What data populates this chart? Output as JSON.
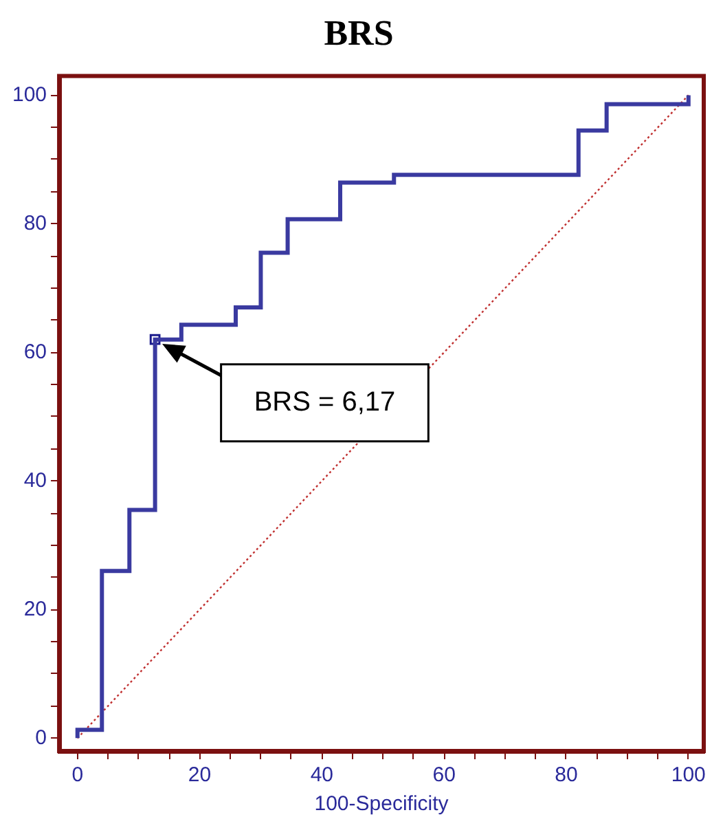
{
  "chart_data": {
    "type": "step",
    "title": "BRS",
    "xlabel": "100-Specificity",
    "xlim": [
      -3,
      102.5
    ],
    "ylim": [
      -2,
      103
    ],
    "xticks": [
      0,
      {
        "value": 5,
        "label": null
      },
      {
        "value": 10,
        "label": null
      },
      {
        "value": 15,
        "label": null
      },
      20,
      {
        "value": 25,
        "label": null
      },
      {
        "value": 30,
        "label": null
      },
      {
        "value": 35,
        "label": null
      },
      40,
      {
        "value": 45,
        "label": null
      },
      {
        "value": 50,
        "label": null
      },
      {
        "value": 55,
        "label": null
      },
      60,
      {
        "value": 65,
        "label": null
      },
      {
        "value": 70,
        "label": null
      },
      {
        "value": 75,
        "label": null
      },
      80,
      {
        "value": 85,
        "label": null
      },
      {
        "value": 90,
        "label": null
      },
      {
        "value": 95,
        "label": null
      },
      100
    ],
    "yticks": [
      0,
      {
        "value": 5,
        "label": null
      },
      {
        "value": 10,
        "label": null
      },
      {
        "value": 15,
        "label": null
      },
      20,
      {
        "value": 25,
        "label": null
      },
      {
        "value": 30,
        "label": null
      },
      {
        "value": 35,
        "label": null
      },
      40,
      {
        "value": 45,
        "label": null
      },
      {
        "value": 50,
        "label": null
      },
      {
        "value": 55,
        "label": null
      },
      60,
      {
        "value": 65,
        "label": null
      },
      {
        "value": 70,
        "label": null
      },
      {
        "value": 75,
        "label": null
      },
      80,
      {
        "value": 85,
        "label": null
      },
      {
        "value": 90,
        "label": null
      },
      {
        "value": 95,
        "label": null
      },
      100
    ],
    "series": [
      {
        "type": "step",
        "color": "#3a3aa0",
        "x": [
          0,
          0,
          4,
          8.5,
          12.7,
          17,
          25.9,
          30,
          34.4,
          43,
          51.8,
          82,
          86.6,
          100
        ],
        "values": [
          0,
          1.3,
          26,
          35.5,
          62,
          64.3,
          67,
          75.5,
          80.7,
          86.4,
          87.6,
          94.5,
          98.6,
          100
        ]
      },
      {
        "type": "line",
        "color": "#c03030",
        "line_style": "dotted",
        "x": [
          0,
          100
        ],
        "values": [
          0,
          100
        ]
      },
      {
        "type": "scatter",
        "color": "#1a1a8c",
        "marker": "square",
        "x": [
          12.7
        ],
        "values": [
          62
        ]
      }
    ],
    "annotations": [
      "BRS = 6,17"
    ]
  }
}
